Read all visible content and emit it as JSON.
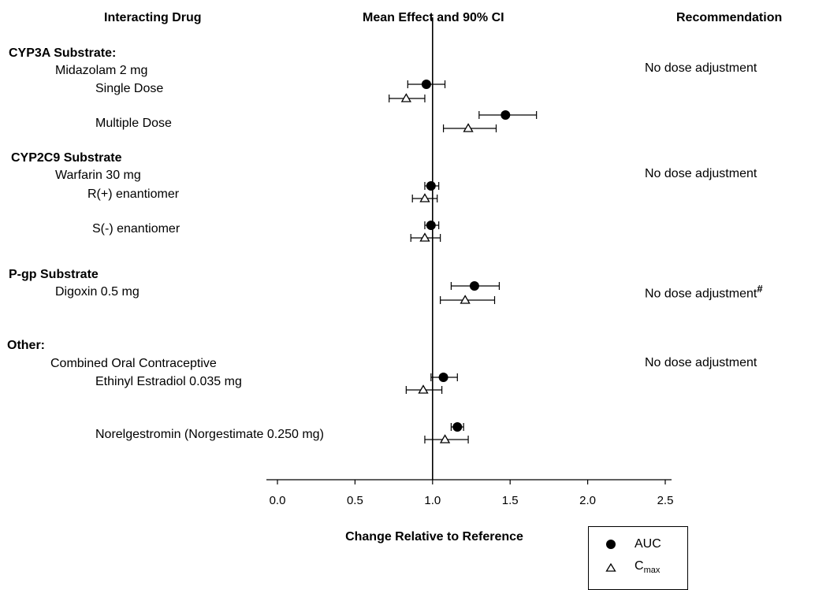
{
  "headers": {
    "drug": "Interacting Drug",
    "effect": "Mean Effect and 90% CI",
    "recommendation": "Recommendation"
  },
  "groups": [
    {
      "title": "CYP3A Substrate:",
      "drug": "Midazolam 2 mg",
      "rows": [
        "Single Dose",
        "Multiple Dose"
      ],
      "recommendation": "No dose adjustment",
      "rec_mark": ""
    },
    {
      "title": "CYP2C9 Substrate",
      "drug": "Warfarin 30 mg",
      "rows": [
        "R(+) enantiomer",
        "S(-) enantiomer"
      ],
      "recommendation": "No dose adjustment",
      "rec_mark": ""
    },
    {
      "title": "P-gp Substrate",
      "drug": "Digoxin 0.5 mg",
      "rows": [],
      "recommendation": "No dose adjustment",
      "rec_mark": "#"
    },
    {
      "title": "Other:",
      "drug": "Combined Oral Contraceptive",
      "rows": [
        "Ethinyl Estradiol 0.035 mg",
        "Norelgestromin (Norgestimate 0.250 mg)"
      ],
      "recommendation": "No dose adjustment",
      "rec_mark": ""
    }
  ],
  "legend": {
    "auc": "AUC",
    "cmax_main": "C",
    "cmax_sub": "max"
  },
  "chart_data": {
    "type": "forest",
    "xlabel": "Change Relative to Reference",
    "xlim": [
      0.0,
      2.5
    ],
    "xticks": [
      "0.0",
      "0.5",
      "1.0",
      "1.5",
      "2.0",
      "2.5"
    ],
    "reference_line": 1.0,
    "series": [
      {
        "name": "AUC",
        "marker": "filled-circle",
        "points": [
          {
            "label": "Midazolam 2 mg Single Dose",
            "mean": 0.96,
            "ci": [
              0.84,
              1.08
            ]
          },
          {
            "label": "Midazolam 2 mg Multiple Dose",
            "mean": 1.47,
            "ci": [
              1.3,
              1.67
            ]
          },
          {
            "label": "Warfarin R(+) enantiomer",
            "mean": 0.99,
            "ci": [
              0.95,
              1.04
            ]
          },
          {
            "label": "Warfarin S(-) enantiomer",
            "mean": 0.99,
            "ci": [
              0.95,
              1.04
            ]
          },
          {
            "label": "Digoxin 0.5 mg",
            "mean": 1.27,
            "ci": [
              1.12,
              1.43
            ]
          },
          {
            "label": "Ethinyl Estradiol 0.035 mg",
            "mean": 1.07,
            "ci": [
              0.99,
              1.16
            ]
          },
          {
            "label": "Norelgestromin (Norgestimate 0.250 mg)",
            "mean": 1.16,
            "ci": [
              1.12,
              1.2
            ]
          }
        ]
      },
      {
        "name": "Cmax",
        "marker": "open-triangle",
        "points": [
          {
            "label": "Midazolam 2 mg Single Dose",
            "mean": 0.83,
            "ci": [
              0.72,
              0.95
            ]
          },
          {
            "label": "Midazolam 2 mg Multiple Dose",
            "mean": 1.23,
            "ci": [
              1.07,
              1.41
            ]
          },
          {
            "label": "Warfarin R(+) enantiomer",
            "mean": 0.95,
            "ci": [
              0.87,
              1.03
            ]
          },
          {
            "label": "Warfarin S(-) enantiomer",
            "mean": 0.95,
            "ci": [
              0.86,
              1.05
            ]
          },
          {
            "label": "Digoxin 0.5 mg",
            "mean": 1.21,
            "ci": [
              1.05,
              1.4
            ]
          },
          {
            "label": "Ethinyl Estradiol 0.035 mg",
            "mean": 0.94,
            "ci": [
              0.83,
              1.06
            ]
          },
          {
            "label": "Norelgestromin (Norgestimate 0.250 mg)",
            "mean": 1.08,
            "ci": [
              0.95,
              1.23
            ]
          }
        ]
      }
    ]
  }
}
